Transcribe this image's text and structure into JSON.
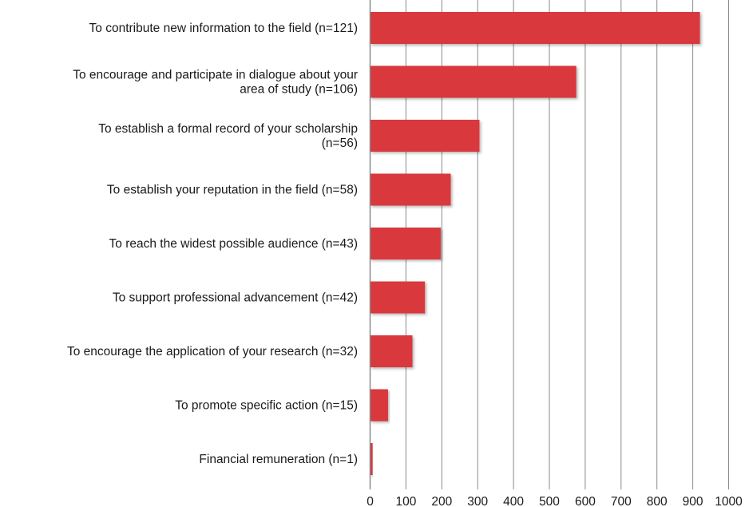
{
  "chart_data": {
    "type": "bar",
    "orientation": "horizontal",
    "title": "",
    "xlabel": "",
    "ylabel": "",
    "categories": [
      [
        "To contribute new information to the field (n=121)"
      ],
      [
        "To encourage and participate in dialogue about your",
        "area of study (n=106)"
      ],
      [
        "To establish a formal record of your scholarship",
        "(n=56)"
      ],
      [
        "To establish your reputation in the field (n=58)"
      ],
      [
        "To reach the widest possible audience (n=43)"
      ],
      [
        "To support professional advancement (n=42)"
      ],
      [
        "To encourage the application of your research (n=32)"
      ],
      [
        "To promote specific action (n=15)"
      ],
      [
        "Financial remuneration (n=1)"
      ]
    ],
    "values": [
      920,
      575,
      305,
      225,
      197,
      153,
      118,
      50,
      7
    ],
    "xlim": [
      0,
      1000
    ],
    "xticks": [
      0,
      100,
      200,
      300,
      400,
      500,
      600,
      700,
      800,
      900,
      1000
    ],
    "grid": true,
    "legend": "none",
    "bar_color": "#d9373d",
    "grid_color": "#8a8a8a"
  }
}
